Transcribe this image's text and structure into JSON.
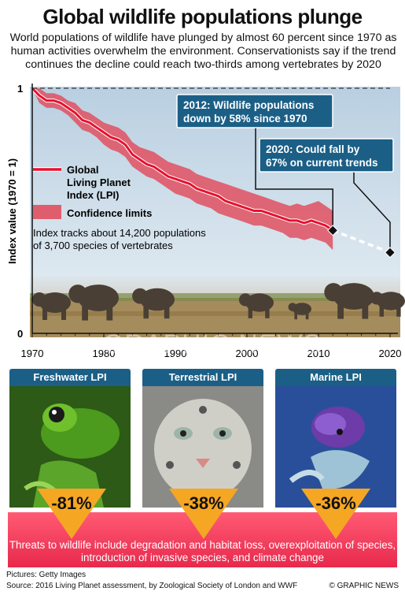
{
  "title": "Global wildlife populations plunge",
  "intro": "World populations of wildlife have plunged by almost 60 percent since 1970 as human activities overwhelm the environment. Conservationists say if the trend continues the decline could reach two-thirds among vertebrates by 2020",
  "chart_data": {
    "type": "line",
    "ylabel": "Index value (1970 = 1)",
    "xlim": [
      1970,
      2020
    ],
    "ylim": [
      0,
      1
    ],
    "xticks": [
      1970,
      1980,
      1990,
      2000,
      2010,
      2020
    ],
    "yticks_labels": [
      "1",
      "0"
    ],
    "series": [
      {
        "name": "Global Living Planet Index (LPI)",
        "x": [
          1970,
          1971,
          1972,
          1973,
          1974,
          1975,
          1976,
          1977,
          1978,
          1979,
          1980,
          1981,
          1982,
          1983,
          1984,
          1985,
          1986,
          1987,
          1988,
          1989,
          1990,
          1991,
          1992,
          1993,
          1994,
          1995,
          1996,
          1997,
          1998,
          1999,
          2000,
          2001,
          2002,
          2003,
          2004,
          2005,
          2006,
          2007,
          2008,
          2009,
          2010,
          2011,
          2012
        ],
        "y": [
          1.0,
          0.97,
          0.95,
          0.95,
          0.94,
          0.92,
          0.9,
          0.87,
          0.86,
          0.84,
          0.82,
          0.8,
          0.79,
          0.77,
          0.73,
          0.71,
          0.69,
          0.68,
          0.66,
          0.64,
          0.63,
          0.62,
          0.61,
          0.59,
          0.58,
          0.57,
          0.56,
          0.54,
          0.53,
          0.52,
          0.51,
          0.5,
          0.5,
          0.49,
          0.48,
          0.47,
          0.46,
          0.46,
          0.45,
          0.46,
          0.45,
          0.44,
          0.42
        ],
        "lower": [
          1.0,
          0.94,
          0.92,
          0.92,
          0.91,
          0.89,
          0.86,
          0.83,
          0.82,
          0.8,
          0.77,
          0.75,
          0.74,
          0.72,
          0.68,
          0.66,
          0.64,
          0.63,
          0.61,
          0.59,
          0.57,
          0.56,
          0.55,
          0.53,
          0.52,
          0.51,
          0.49,
          0.48,
          0.47,
          0.46,
          0.45,
          0.44,
          0.44,
          0.43,
          0.42,
          0.41,
          0.39,
          0.39,
          0.38,
          0.39,
          0.38,
          0.37,
          0.34
        ],
        "upper": [
          1.0,
          1.0,
          0.98,
          0.98,
          0.97,
          0.95,
          0.94,
          0.91,
          0.9,
          0.88,
          0.86,
          0.85,
          0.84,
          0.82,
          0.78,
          0.76,
          0.75,
          0.74,
          0.72,
          0.7,
          0.69,
          0.68,
          0.67,
          0.65,
          0.64,
          0.63,
          0.62,
          0.61,
          0.6,
          0.59,
          0.58,
          0.57,
          0.56,
          0.55,
          0.54,
          0.53,
          0.52,
          0.53,
          0.52,
          0.53,
          0.54,
          0.52,
          0.5
        ]
      },
      {
        "name": "Projection",
        "x": [
          2012,
          2020
        ],
        "y": [
          0.42,
          0.33
        ]
      }
    ],
    "legend": {
      "line_label": "Global Living Planet Index (LPI)",
      "line_label_lines": [
        "Global",
        "Living Planet",
        "Index (LPI)"
      ],
      "band_label": "Confidence limits",
      "placement": "left"
    },
    "annotations": {
      "note_lines": [
        "Index tracks about 14,200 populations",
        "of 3,700 species of vertebrates"
      ],
      "callout_2012_lines": [
        "2012: Wildlife populations",
        "down by 58% since 1970"
      ],
      "callout_2020_lines": [
        "2020: Could fall by",
        "67% on current trends"
      ]
    },
    "colors": {
      "line": "#e8102e",
      "band": "#e05060",
      "callout": "#1b5f86",
      "projection": "#ffffff"
    },
    "grid": false
  },
  "watermark": "GRAPHIC NEWS",
  "panels": [
    {
      "label": "Freshwater LPI",
      "value": "-81%",
      "subject": "frog-photo"
    },
    {
      "label": "Terrestrial LPI",
      "value": "-38%",
      "subject": "snow-leopard-photo"
    },
    {
      "label": "Marine LPI",
      "value": "-36%",
      "subject": "sea-turtle-photo"
    }
  ],
  "threats": "Threats to wildlife include degradation and habitat loss, overexploitation of species, introduction of invasive species, and climate change",
  "footer": {
    "pictures": "Pictures: Getty Images",
    "source": "Source: 2016 Living Planet assessment, by Zoological Society of London and WWF",
    "credit": "© GRAPHIC NEWS"
  },
  "accent_colors": {
    "badge": "#f5a623",
    "threat_band": "#e8294c",
    "panel_head": "#1b5f86"
  }
}
